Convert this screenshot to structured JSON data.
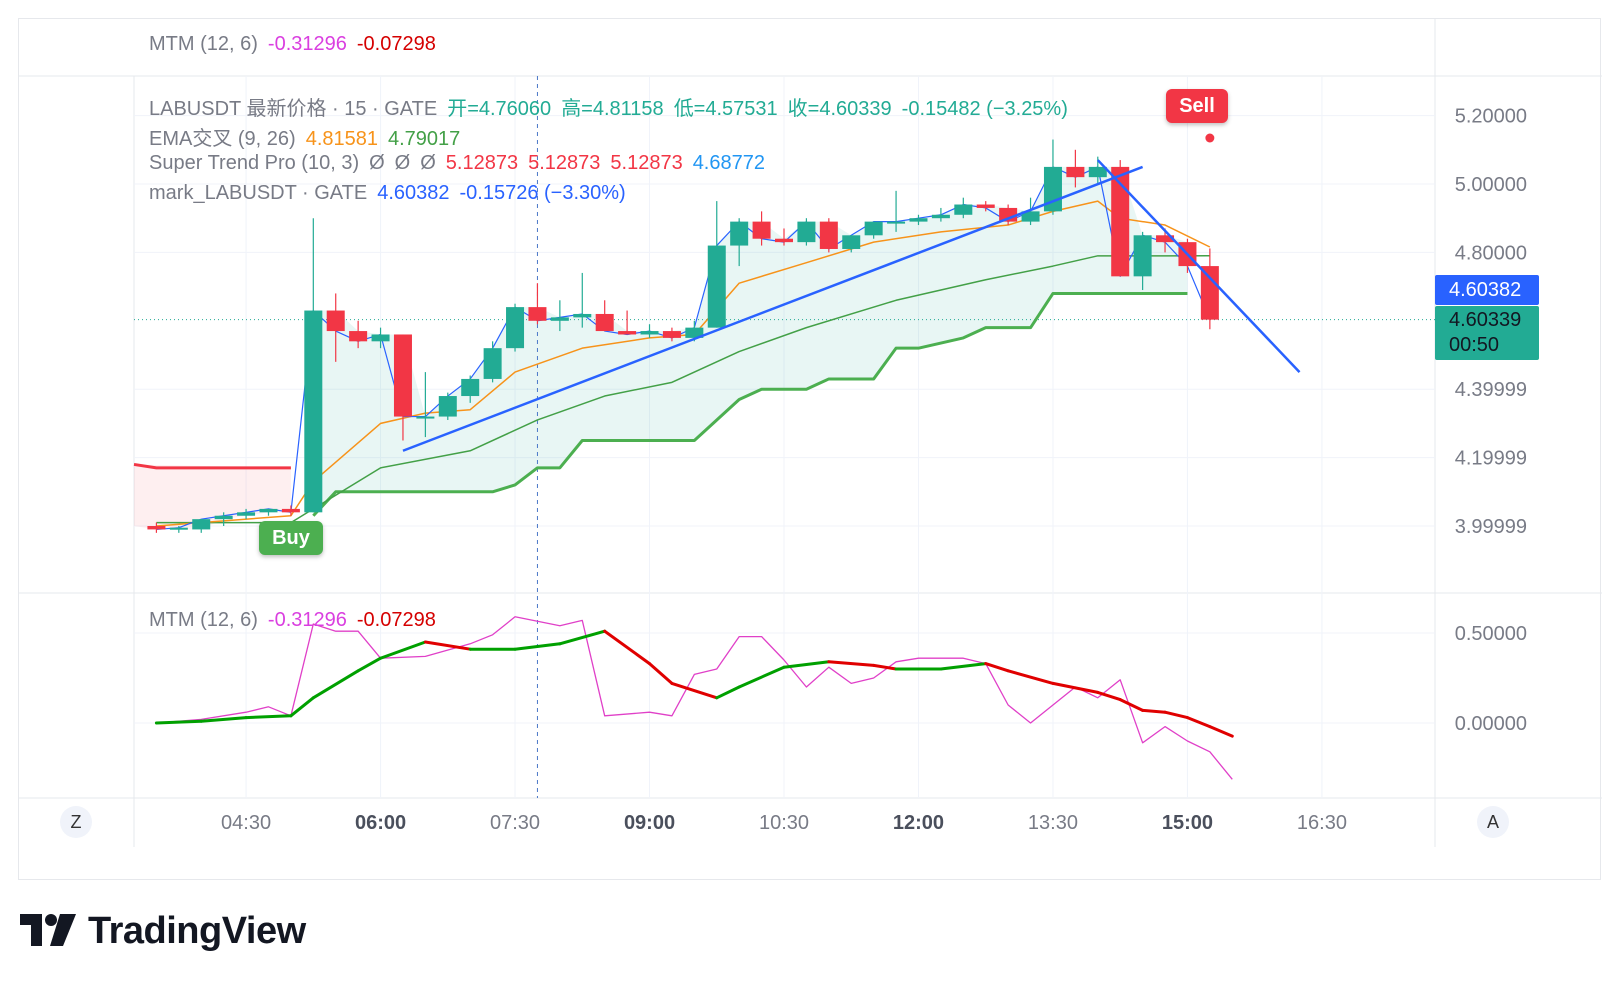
{
  "colors": {
    "up": "#22ab94",
    "down": "#f23645",
    "ema_fast": "#f7931a",
    "ema_slow": "#43a047",
    "supertrend_up": "#4caf50",
    "supertrend_down": "#f23645",
    "trendline": "#2962ff",
    "mtm": "#e040c8",
    "signal_up": "#00a000",
    "signal_down": "#e00000",
    "mark_tag": "#2962ff"
  },
  "top_pane": {
    "name": "MTM (12, 6)",
    "v1": "-0.31296",
    "v2": "-0.07298"
  },
  "legend": {
    "symbol": {
      "title": "LABUSDT 最新价格 · 15 · GATE",
      "open": "开=4.76060",
      "high": "高=4.81158",
      "low": "低=4.57531",
      "close": "收=4.60339",
      "change": "-0.15482 (−3.25%)"
    },
    "ema": {
      "name": "EMA交叉 (9, 26)",
      "v1": "4.81581",
      "v2": "4.79017"
    },
    "supertrend": {
      "name": "Super Trend Pro (10, 3)",
      "nulls": [
        "Ø",
        "Ø",
        "Ø"
      ],
      "v1": "5.12873",
      "v2": "5.12873",
      "v3": "5.12873",
      "v4": "4.68772"
    },
    "mark": {
      "name": "mark_LABUSDT · GATE",
      "value": "4.60382",
      "change": "-0.15726 (−3.30%)"
    }
  },
  "price_axis": {
    "labels": [
      "5.20000",
      "5.00000",
      "4.80000",
      "4.39999",
      "4.19999",
      "3.99999"
    ],
    "mark_tag": "4.60382",
    "last_tag": "4.60339",
    "countdown": "00:50"
  },
  "mtm_axis": {
    "labels": [
      "0.50000",
      "0.00000"
    ]
  },
  "time_axis": {
    "labels": [
      {
        "text": "04:30",
        "bold": false
      },
      {
        "text": "06:00",
        "bold": true
      },
      {
        "text": "07:30",
        "bold": false
      },
      {
        "text": "09:00",
        "bold": true
      },
      {
        "text": "10:30",
        "bold": false
      },
      {
        "text": "12:00",
        "bold": true
      },
      {
        "text": "13:30",
        "bold": false
      },
      {
        "text": "15:00",
        "bold": true
      },
      {
        "text": "16:30",
        "bold": false
      }
    ]
  },
  "buttons": {
    "zoom": "Z",
    "auto": "A"
  },
  "signals": {
    "buy": "Buy",
    "sell": "Sell"
  },
  "brand": {
    "name": "TradingView"
  },
  "chart_data": {
    "type": "candlestick",
    "symbol": "LABUSDT",
    "interval_minutes": 15,
    "exchange": "GATE",
    "x_range": [
      "03:15",
      "17:45"
    ],
    "y_range": [
      3.98,
      5.22
    ],
    "candles": [
      {
        "t": "03:30",
        "o": 4.0,
        "h": 4.01,
        "l": 3.98,
        "c": 3.99
      },
      {
        "t": "03:45",
        "o": 3.99,
        "h": 4.0,
        "l": 3.98,
        "c": 3.995
      },
      {
        "t": "04:00",
        "o": 3.99,
        "h": 4.02,
        "l": 3.98,
        "c": 4.02
      },
      {
        "t": "04:15",
        "o": 4.02,
        "h": 4.04,
        "l": 4.0,
        "c": 4.03
      },
      {
        "t": "04:30",
        "o": 4.03,
        "h": 4.05,
        "l": 4.02,
        "c": 4.04
      },
      {
        "t": "04:45",
        "o": 4.04,
        "h": 4.05,
        "l": 4.03,
        "c": 4.05
      },
      {
        "t": "05:00",
        "o": 4.05,
        "h": 4.06,
        "l": 4.03,
        "c": 4.04
      },
      {
        "t": "05:15",
        "o": 4.04,
        "h": 4.9,
        "l": 4.04,
        "c": 4.63
      },
      {
        "t": "05:30",
        "o": 4.63,
        "h": 4.68,
        "l": 4.48,
        "c": 4.57
      },
      {
        "t": "05:45",
        "o": 4.57,
        "h": 4.6,
        "l": 4.52,
        "c": 4.54
      },
      {
        "t": "06:00",
        "o": 4.54,
        "h": 4.58,
        "l": 4.52,
        "c": 4.56
      },
      {
        "t": "06:15",
        "o": 4.56,
        "h": 4.56,
        "l": 4.25,
        "c": 4.32
      },
      {
        "t": "06:30",
        "o": 4.32,
        "h": 4.45,
        "l": 4.26,
        "c": 4.32
      },
      {
        "t": "06:45",
        "o": 4.32,
        "h": 4.39,
        "l": 4.31,
        "c": 4.38
      },
      {
        "t": "07:00",
        "o": 4.38,
        "h": 4.44,
        "l": 4.36,
        "c": 4.43
      },
      {
        "t": "07:15",
        "o": 4.43,
        "h": 4.54,
        "l": 4.42,
        "c": 4.52
      },
      {
        "t": "07:30",
        "o": 4.52,
        "h": 4.65,
        "l": 4.51,
        "c": 4.64
      },
      {
        "t": "07:45",
        "o": 4.64,
        "h": 4.71,
        "l": 4.59,
        "c": 4.6
      },
      {
        "t": "08:00",
        "o": 4.6,
        "h": 4.66,
        "l": 4.57,
        "c": 4.61
      },
      {
        "t": "08:15",
        "o": 4.61,
        "h": 4.74,
        "l": 4.58,
        "c": 4.62
      },
      {
        "t": "08:30",
        "o": 4.62,
        "h": 4.66,
        "l": 4.57,
        "c": 4.57
      },
      {
        "t": "08:45",
        "o": 4.57,
        "h": 4.63,
        "l": 4.56,
        "c": 4.56
      },
      {
        "t": "09:00",
        "o": 4.56,
        "h": 4.59,
        "l": 4.55,
        "c": 4.57
      },
      {
        "t": "09:15",
        "o": 4.57,
        "h": 4.58,
        "l": 4.54,
        "c": 4.55
      },
      {
        "t": "09:30",
        "o": 4.55,
        "h": 4.6,
        "l": 4.54,
        "c": 4.58
      },
      {
        "t": "09:45",
        "o": 4.58,
        "h": 4.95,
        "l": 4.58,
        "c": 4.82
      },
      {
        "t": "10:00",
        "o": 4.82,
        "h": 4.9,
        "l": 4.76,
        "c": 4.89
      },
      {
        "t": "10:15",
        "o": 4.89,
        "h": 4.92,
        "l": 4.82,
        "c": 4.84
      },
      {
        "t": "10:30",
        "o": 4.84,
        "h": 4.87,
        "l": 4.82,
        "c": 4.83
      },
      {
        "t": "10:45",
        "o": 4.83,
        "h": 4.9,
        "l": 4.82,
        "c": 4.89
      },
      {
        "t": "11:00",
        "o": 4.89,
        "h": 4.9,
        "l": 4.8,
        "c": 4.81
      },
      {
        "t": "11:15",
        "o": 4.81,
        "h": 4.85,
        "l": 4.8,
        "c": 4.85
      },
      {
        "t": "11:30",
        "o": 4.85,
        "h": 4.89,
        "l": 4.84,
        "c": 4.89
      },
      {
        "t": "11:45",
        "o": 4.89,
        "h": 4.98,
        "l": 4.86,
        "c": 4.89
      },
      {
        "t": "12:00",
        "o": 4.89,
        "h": 4.91,
        "l": 4.88,
        "c": 4.9
      },
      {
        "t": "12:15",
        "o": 4.9,
        "h": 4.93,
        "l": 4.89,
        "c": 4.91
      },
      {
        "t": "12:30",
        "o": 4.91,
        "h": 4.96,
        "l": 4.9,
        "c": 4.94
      },
      {
        "t": "12:45",
        "o": 4.94,
        "h": 4.95,
        "l": 4.92,
        "c": 4.93
      },
      {
        "t": "13:00",
        "o": 4.93,
        "h": 4.94,
        "l": 4.88,
        "c": 4.89
      },
      {
        "t": "13:15",
        "o": 4.89,
        "h": 4.96,
        "l": 4.88,
        "c": 4.92
      },
      {
        "t": "13:30",
        "o": 4.92,
        "h": 5.13,
        "l": 4.91,
        "c": 5.05
      },
      {
        "t": "13:45",
        "o": 5.05,
        "h": 5.1,
        "l": 4.99,
        "c": 5.02
      },
      {
        "t": "14:00",
        "o": 5.02,
        "h": 5.08,
        "l": 5.0,
        "c": 5.05
      },
      {
        "t": "14:15",
        "o": 5.05,
        "h": 5.07,
        "l": 4.73,
        "c": 4.73
      },
      {
        "t": "14:30",
        "o": 4.73,
        "h": 4.86,
        "l": 4.69,
        "c": 4.85
      },
      {
        "t": "14:45",
        "o": 4.85,
        "h": 4.87,
        "l": 4.8,
        "c": 4.83
      },
      {
        "t": "15:00",
        "o": 4.83,
        "h": 4.84,
        "l": 4.74,
        "c": 4.76
      },
      {
        "t": "15:15",
        "o": 4.76,
        "h": 4.81158,
        "l": 4.57531,
        "c": 4.60339
      }
    ],
    "ema_fast": [
      {
        "t": "03:30",
        "v": 4.0
      },
      {
        "t": "05:00",
        "v": 4.03
      },
      {
        "t": "05:15",
        "v": 4.13
      },
      {
        "t": "06:00",
        "v": 4.3
      },
      {
        "t": "06:30",
        "v": 4.33
      },
      {
        "t": "07:00",
        "v": 4.34
      },
      {
        "t": "07:30",
        "v": 4.45
      },
      {
        "t": "08:15",
        "v": 4.52
      },
      {
        "t": "09:00",
        "v": 4.55
      },
      {
        "t": "09:30",
        "v": 4.56
      },
      {
        "t": "10:00",
        "v": 4.71
      },
      {
        "t": "10:45",
        "v": 4.77
      },
      {
        "t": "11:30",
        "v": 4.83
      },
      {
        "t": "12:15",
        "v": 4.86
      },
      {
        "t": "13:00",
        "v": 4.88
      },
      {
        "t": "13:30",
        "v": 4.92
      },
      {
        "t": "14:00",
        "v": 4.95
      },
      {
        "t": "14:15",
        "v": 4.9
      },
      {
        "t": "14:45",
        "v": 4.88
      },
      {
        "t": "15:15",
        "v": 4.81581
      }
    ],
    "ema_slow": [
      {
        "t": "03:30",
        "v": 4.01
      },
      {
        "t": "05:00",
        "v": 4.01
      },
      {
        "t": "05:15",
        "v": 4.05
      },
      {
        "t": "06:00",
        "v": 4.17
      },
      {
        "t": "07:00",
        "v": 4.22
      },
      {
        "t": "07:45",
        "v": 4.31
      },
      {
        "t": "08:30",
        "v": 4.38
      },
      {
        "t": "09:15",
        "v": 4.42
      },
      {
        "t": "10:00",
        "v": 4.51
      },
      {
        "t": "10:45",
        "v": 4.58
      },
      {
        "t": "11:45",
        "v": 4.66
      },
      {
        "t": "12:45",
        "v": 4.72
      },
      {
        "t": "13:30",
        "v": 4.76
      },
      {
        "t": "14:00",
        "v": 4.79
      },
      {
        "t": "14:45",
        "v": 4.79
      },
      {
        "t": "15:15",
        "v": 4.79017
      }
    ],
    "supertrend_down": [
      {
        "t": "03:15",
        "v": 4.18
      },
      {
        "t": "03:30",
        "v": 4.17
      },
      {
        "t": "05:00",
        "v": 4.17
      }
    ],
    "supertrend_up": [
      {
        "t": "05:15",
        "v": 4.03
      },
      {
        "t": "05:30",
        "v": 4.1
      },
      {
        "t": "06:45",
        "v": 4.1
      },
      {
        "t": "07:15",
        "v": 4.1
      },
      {
        "t": "07:30",
        "v": 4.12
      },
      {
        "t": "07:45",
        "v": 4.17
      },
      {
        "t": "08:00",
        "v": 4.17
      },
      {
        "t": "08:15",
        "v": 4.25
      },
      {
        "t": "09:30",
        "v": 4.25
      },
      {
        "t": "10:00",
        "v": 4.37
      },
      {
        "t": "10:15",
        "v": 4.4
      },
      {
        "t": "10:45",
        "v": 4.4
      },
      {
        "t": "11:00",
        "v": 4.43
      },
      {
        "t": "11:30",
        "v": 4.43
      },
      {
        "t": "11:45",
        "v": 4.52
      },
      {
        "t": "12:00",
        "v": 4.52
      },
      {
        "t": "12:30",
        "v": 4.55
      },
      {
        "t": "12:45",
        "v": 4.58
      },
      {
        "t": "13:15",
        "v": 4.58
      },
      {
        "t": "13:30",
        "v": 4.68
      },
      {
        "t": "15:00",
        "v": 4.68
      }
    ],
    "trendlines": [
      {
        "from": {
          "t": "06:15",
          "v": 4.22
        },
        "to": {
          "t": "14:30",
          "v": 5.05
        }
      },
      {
        "from": {
          "t": "14:00",
          "v": 5.07
        },
        "to": {
          "t": "16:15",
          "v": 4.45
        }
      }
    ],
    "signals": [
      {
        "type": "Buy",
        "t": "05:15"
      },
      {
        "type": "Sell",
        "t": "15:15"
      }
    ],
    "mtm": {
      "y_range": [
        -0.35,
        0.62
      ],
      "mtm": [
        {
          "t": "03:30",
          "v": 0.0
        },
        {
          "t": "04:00",
          "v": 0.02
        },
        {
          "t": "04:30",
          "v": 0.06
        },
        {
          "t": "04:45",
          "v": 0.09
        },
        {
          "t": "05:00",
          "v": 0.04
        },
        {
          "t": "05:15",
          "v": 0.55
        },
        {
          "t": "05:30",
          "v": 0.51
        },
        {
          "t": "05:45",
          "v": 0.51
        },
        {
          "t": "06:00",
          "v": 0.36
        },
        {
          "t": "06:30",
          "v": 0.37
        },
        {
          "t": "07:00",
          "v": 0.44
        },
        {
          "t": "07:15",
          "v": 0.49
        },
        {
          "t": "07:30",
          "v": 0.59
        },
        {
          "t": "08:00",
          "v": 0.54
        },
        {
          "t": "08:15",
          "v": 0.57
        },
        {
          "t": "08:30",
          "v": 0.04
        },
        {
          "t": "09:00",
          "v": 0.06
        },
        {
          "t": "09:15",
          "v": 0.04
        },
        {
          "t": "09:30",
          "v": 0.27
        },
        {
          "t": "09:45",
          "v": 0.3
        },
        {
          "t": "10:00",
          "v": 0.48
        },
        {
          "t": "10:15",
          "v": 0.48
        },
        {
          "t": "10:30",
          "v": 0.35
        },
        {
          "t": "10:45",
          "v": 0.2
        },
        {
          "t": "11:00",
          "v": 0.31
        },
        {
          "t": "11:15",
          "v": 0.22
        },
        {
          "t": "11:30",
          "v": 0.25
        },
        {
          "t": "11:45",
          "v": 0.34
        },
        {
          "t": "12:00",
          "v": 0.36
        },
        {
          "t": "12:30",
          "v": 0.36
        },
        {
          "t": "12:45",
          "v": 0.33
        },
        {
          "t": "13:00",
          "v": 0.1
        },
        {
          "t": "13:15",
          "v": 0.0
        },
        {
          "t": "13:30",
          "v": 0.1
        },
        {
          "t": "13:45",
          "v": 0.2
        },
        {
          "t": "14:00",
          "v": 0.14
        },
        {
          "t": "14:15",
          "v": 0.24
        },
        {
          "t": "14:30",
          "v": -0.11
        },
        {
          "t": "14:45",
          "v": -0.02
        },
        {
          "t": "15:00",
          "v": -0.1
        },
        {
          "t": "15:15",
          "v": -0.16
        },
        {
          "t": "15:30",
          "v": -0.31296
        }
      ],
      "signal": [
        {
          "t": "03:30",
          "v": 0.0
        },
        {
          "t": "04:00",
          "v": 0.01
        },
        {
          "t": "04:30",
          "v": 0.03
        },
        {
          "t": "05:00",
          "v": 0.04
        },
        {
          "t": "05:15",
          "v": 0.14
        },
        {
          "t": "05:45",
          "v": 0.29
        },
        {
          "t": "06:00",
          "v": 0.36
        },
        {
          "t": "06:30",
          "v": 0.45
        },
        {
          "t": "07:00",
          "v": 0.41
        },
        {
          "t": "07:30",
          "v": 0.41
        },
        {
          "t": "08:00",
          "v": 0.44
        },
        {
          "t": "08:30",
          "v": 0.51
        },
        {
          "t": "09:00",
          "v": 0.33
        },
        {
          "t": "09:15",
          "v": 0.22
        },
        {
          "t": "09:45",
          "v": 0.14
        },
        {
          "t": "10:00",
          "v": 0.2
        },
        {
          "t": "10:30",
          "v": 0.31
        },
        {
          "t": "11:00",
          "v": 0.34
        },
        {
          "t": "11:30",
          "v": 0.32
        },
        {
          "t": "11:45",
          "v": 0.3
        },
        {
          "t": "12:15",
          "v": 0.3
        },
        {
          "t": "12:45",
          "v": 0.33
        },
        {
          "t": "13:00",
          "v": 0.29
        },
        {
          "t": "13:30",
          "v": 0.22
        },
        {
          "t": "14:00",
          "v": 0.17
        },
        {
          "t": "14:15",
          "v": 0.13
        },
        {
          "t": "14:30",
          "v": 0.07
        },
        {
          "t": "14:45",
          "v": 0.06
        },
        {
          "t": "15:00",
          "v": 0.03
        },
        {
          "t": "15:15",
          "v": -0.02
        },
        {
          "t": "15:30",
          "v": -0.07298
        }
      ]
    }
  }
}
